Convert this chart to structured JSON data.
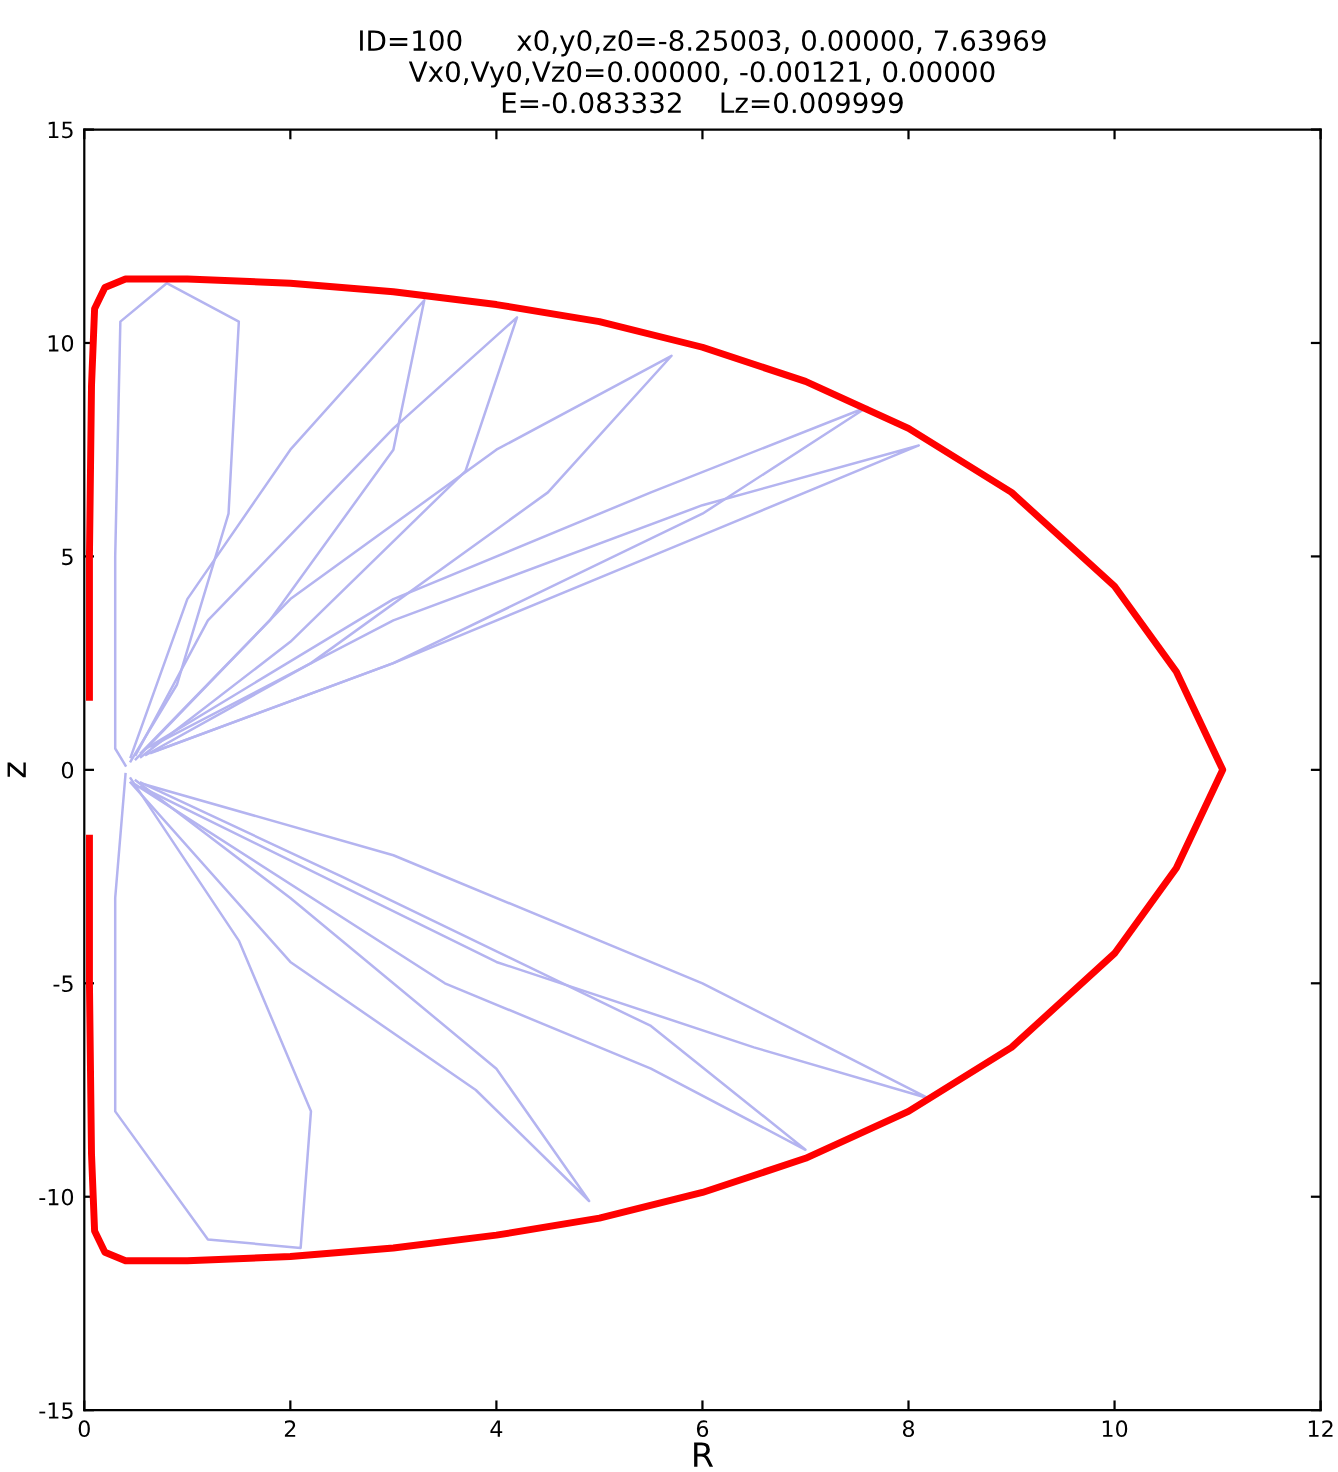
{
  "chart_data": {
    "type": "line",
    "title": "ID=100      x0,y0,z0=-8.25003, 0.00000, 7.63969\nVx0,Vy0,Vz0=0.00000, -0.00121, 0.00000\nE=-0.083332    Lz=0.009999",
    "xlabel": "R",
    "ylabel": "z",
    "xlim": [
      0,
      12
    ],
    "ylim": [
      -15,
      15
    ],
    "xticks": [
      0,
      2,
      4,
      6,
      8,
      10,
      12
    ],
    "yticks": [
      -15,
      -10,
      -5,
      0,
      5,
      10,
      15
    ],
    "grid": false,
    "series": [
      {
        "color": "#b4b4f0",
        "x": [
          0.4,
          0.3,
          0.3,
          0.35,
          0.8,
          1.5,
          1.4,
          0.9,
          0.45
        ],
        "values": [
          0.1,
          0.5,
          5.0,
          10.5,
          11.4,
          10.5,
          6.0,
          2.0,
          0.2
        ]
      },
      {
        "color": "#b4b4f0",
        "x": [
          0.45,
          1.0,
          2.0,
          3.3,
          3.0,
          1.8,
          0.5
        ],
        "values": [
          0.3,
          4.0,
          7.5,
          11.0,
          7.5,
          3.5,
          0.25
        ]
      },
      {
        "color": "#b4b4f0",
        "x": [
          0.5,
          1.2,
          3.0,
          4.2,
          3.7,
          2.0,
          0.55
        ],
        "values": [
          0.35,
          3.5,
          8.0,
          10.6,
          7.0,
          3.0,
          0.3
        ]
      },
      {
        "color": "#b4b4f0",
        "x": [
          0.55,
          2.0,
          4.0,
          5.7,
          4.5,
          2.2,
          0.6
        ],
        "values": [
          0.4,
          4.0,
          7.5,
          9.7,
          6.5,
          2.5,
          0.35
        ]
      },
      {
        "color": "#b4b4f0",
        "x": [
          0.6,
          3.0,
          5.5,
          7.6,
          6.0,
          3.0,
          0.65
        ],
        "values": [
          0.5,
          4.0,
          6.5,
          8.5,
          6.0,
          2.5,
          0.4
        ]
      },
      {
        "color": "#b4b4f0",
        "x": [
          0.65,
          3.0,
          6.0,
          8.1,
          6.0,
          3.0,
          0.7
        ],
        "values": [
          0.55,
          3.5,
          6.2,
          7.6,
          5.5,
          2.5,
          0.45
        ]
      },
      {
        "color": "#b4b4f0",
        "x": [
          0.4,
          0.3,
          0.3,
          1.2,
          2.1,
          2.2,
          1.5,
          0.45
        ],
        "values": [
          -0.1,
          -3.0,
          -8.0,
          -11.0,
          -11.2,
          -8.0,
          -4.0,
          -0.2
        ]
      },
      {
        "color": "#b4b4f0",
        "x": [
          0.45,
          2.0,
          3.8,
          4.9,
          4.0,
          2.0,
          0.5
        ],
        "values": [
          -0.3,
          -4.5,
          -7.5,
          -10.1,
          -7.0,
          -3.0,
          -0.25
        ]
      },
      {
        "color": "#b4b4f0",
        "x": [
          0.5,
          3.5,
          5.5,
          7.0,
          5.5,
          2.5,
          0.55
        ],
        "values": [
          -0.35,
          -5.0,
          -7.0,
          -8.9,
          -6.0,
          -2.5,
          -0.3
        ]
      },
      {
        "color": "#b4b4f0",
        "x": [
          0.55,
          4.0,
          6.5,
          8.2,
          6.0,
          3.0,
          0.6
        ],
        "values": [
          -0.4,
          -4.5,
          -6.5,
          -7.7,
          -5.0,
          -2.0,
          -0.35
        ]
      },
      {
        "color": "#ff0000",
        "x": [
          0.05,
          0.05,
          0.07,
          0.1,
          0.2,
          0.4,
          1,
          2,
          3,
          4,
          5,
          6,
          7,
          8,
          9,
          10,
          10.6,
          11.05,
          10.6,
          10,
          9,
          8,
          7,
          6,
          5,
          4,
          3,
          2,
          1,
          0.4,
          0.2,
          0.1,
          0.07,
          0.05,
          0.05
        ],
        "values": [
          1.7,
          5,
          9,
          10.8,
          11.3,
          11.5,
          11.5,
          11.4,
          11.2,
          10.9,
          10.5,
          9.9,
          9.1,
          8.0,
          6.5,
          4.3,
          2.3,
          0,
          -2.3,
          -4.3,
          -6.5,
          -8.0,
          -9.1,
          -9.9,
          -10.5,
          -10.9,
          -11.2,
          -11.4,
          -11.5,
          -11.5,
          -11.3,
          -10.8,
          -9,
          -5,
          -1.6
        ]
      }
    ]
  }
}
